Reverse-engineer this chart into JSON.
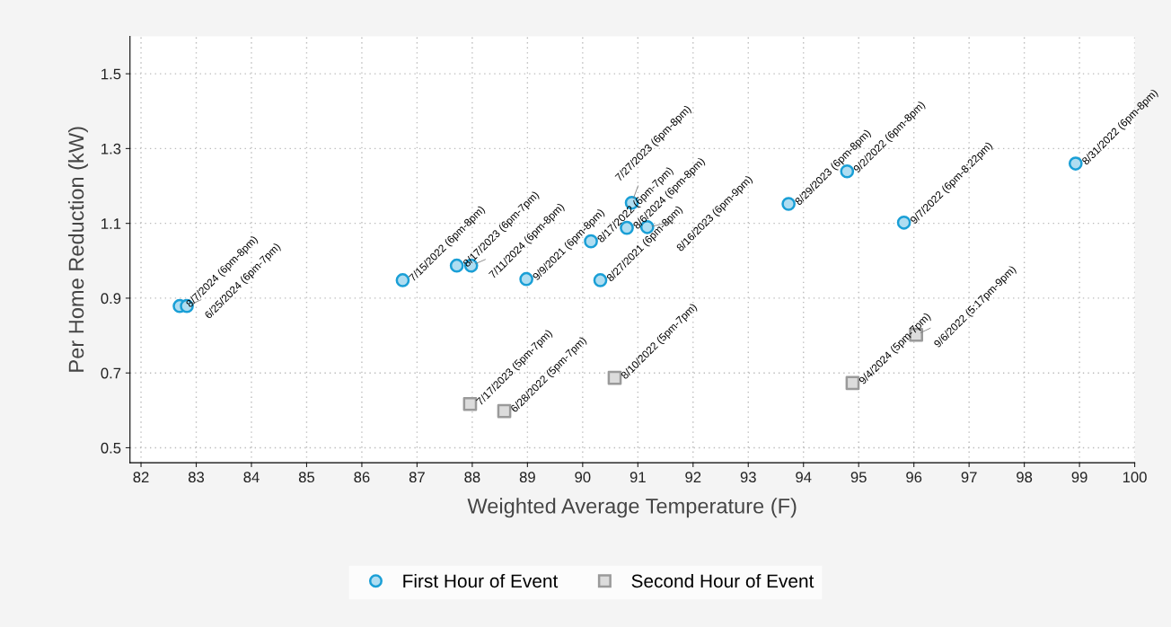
{
  "chart_data": {
    "type": "scatter",
    "xlabel": "Weighted Average Temperature (F)",
    "ylabel": "Per Home Reduction (kW)",
    "xlim": [
      81.8,
      100
    ],
    "xticks": [
      82,
      83,
      84,
      85,
      86,
      87,
      88,
      89,
      90,
      91,
      92,
      93,
      94,
      95,
      96,
      97,
      98,
      99,
      100
    ],
    "ylim": [
      0.46,
      1.6
    ],
    "yticks": [
      0.5,
      0.7,
      0.9,
      1.1,
      1.3,
      1.5
    ],
    "grid": true,
    "legend": "bottom",
    "series": [
      {
        "name": "First Hour of Event",
        "color": "#1a9fd6",
        "marker": "circle",
        "x": [
          82.7,
          82.83,
          86.74,
          87.72,
          87.98,
          88.98,
          90.15,
          90.32,
          90.8,
          90.89,
          91.17,
          93.73,
          94.79,
          95.82,
          98.93
        ],
        "values": [
          0.879,
          0.879,
          0.948,
          0.987,
          0.987,
          0.951,
          1.052,
          0.948,
          1.088,
          1.155,
          1.09,
          1.152,
          1.239,
          1.102,
          1.26
        ]
      },
      {
        "name": "Second Hour of Event",
        "color": "#9a9a9a",
        "marker": "square",
        "x": [
          87.96,
          88.58,
          90.58,
          94.89,
          96.04
        ],
        "values": [
          0.617,
          0.598,
          0.687,
          0.673,
          0.802
        ]
      }
    ],
    "annotations": [
      {
        "text": "8/7/2024 (6pm-8pm)",
        "x": 82.7,
        "y": 0.879
      },
      {
        "text": "6/25/2024 (6pm-7pm)",
        "x": 82.83,
        "y": 0.879
      },
      {
        "text": "7/15/2022 (6pm-8pm)",
        "x": 86.74,
        "y": 0.948
      },
      {
        "text": "8/17/2023 (6pm-7pm)",
        "x": 87.72,
        "y": 0.987
      },
      {
        "text": "7/11/2024 (6pm-8pm)",
        "x": 87.98,
        "y": 0.987
      },
      {
        "text": "9/9/2021 (6pm-8pm)",
        "x": 88.98,
        "y": 0.951
      },
      {
        "text": "8/17/2022 (6pm-7pm)",
        "x": 90.15,
        "y": 1.052
      },
      {
        "text": "8/27/2021 (6pm-8pm)",
        "x": 90.32,
        "y": 0.948
      },
      {
        "text": "8/6/2024 (6pm-8pm)",
        "x": 90.8,
        "y": 1.088
      },
      {
        "text": "7/27/2023 (6pm-8pm)",
        "x": 90.89,
        "y": 1.155
      },
      {
        "text": "8/16/2023 (6pm-9pm)",
        "x": 91.17,
        "y": 1.09
      },
      {
        "text": "8/29/2023 (6pm-8pm)",
        "x": 93.73,
        "y": 1.152
      },
      {
        "text": "9/2/2022 (6pm-8pm)",
        "x": 94.79,
        "y": 1.239
      },
      {
        "text": "9/7/2022 (6pm-8:22pm)",
        "x": 95.82,
        "y": 1.102
      },
      {
        "text": "8/31/2022 (6pm-8pm)",
        "x": 98.93,
        "y": 1.26
      },
      {
        "text": "7/17/2023 (5pm-7pm)",
        "x": 87.96,
        "y": 0.617
      },
      {
        "text": "6/28/2022 (5pm-7pm)",
        "x": 88.58,
        "y": 0.598
      },
      {
        "text": "8/10/2022 (5pm-7pm)",
        "x": 90.58,
        "y": 0.687
      },
      {
        "text": "9/4/2024 (5pm-7pm)",
        "x": 94.89,
        "y": 0.673
      },
      {
        "text": "9/6/2022 (5:17pm-9pm)",
        "x": 96.04,
        "y": 0.802
      }
    ]
  }
}
